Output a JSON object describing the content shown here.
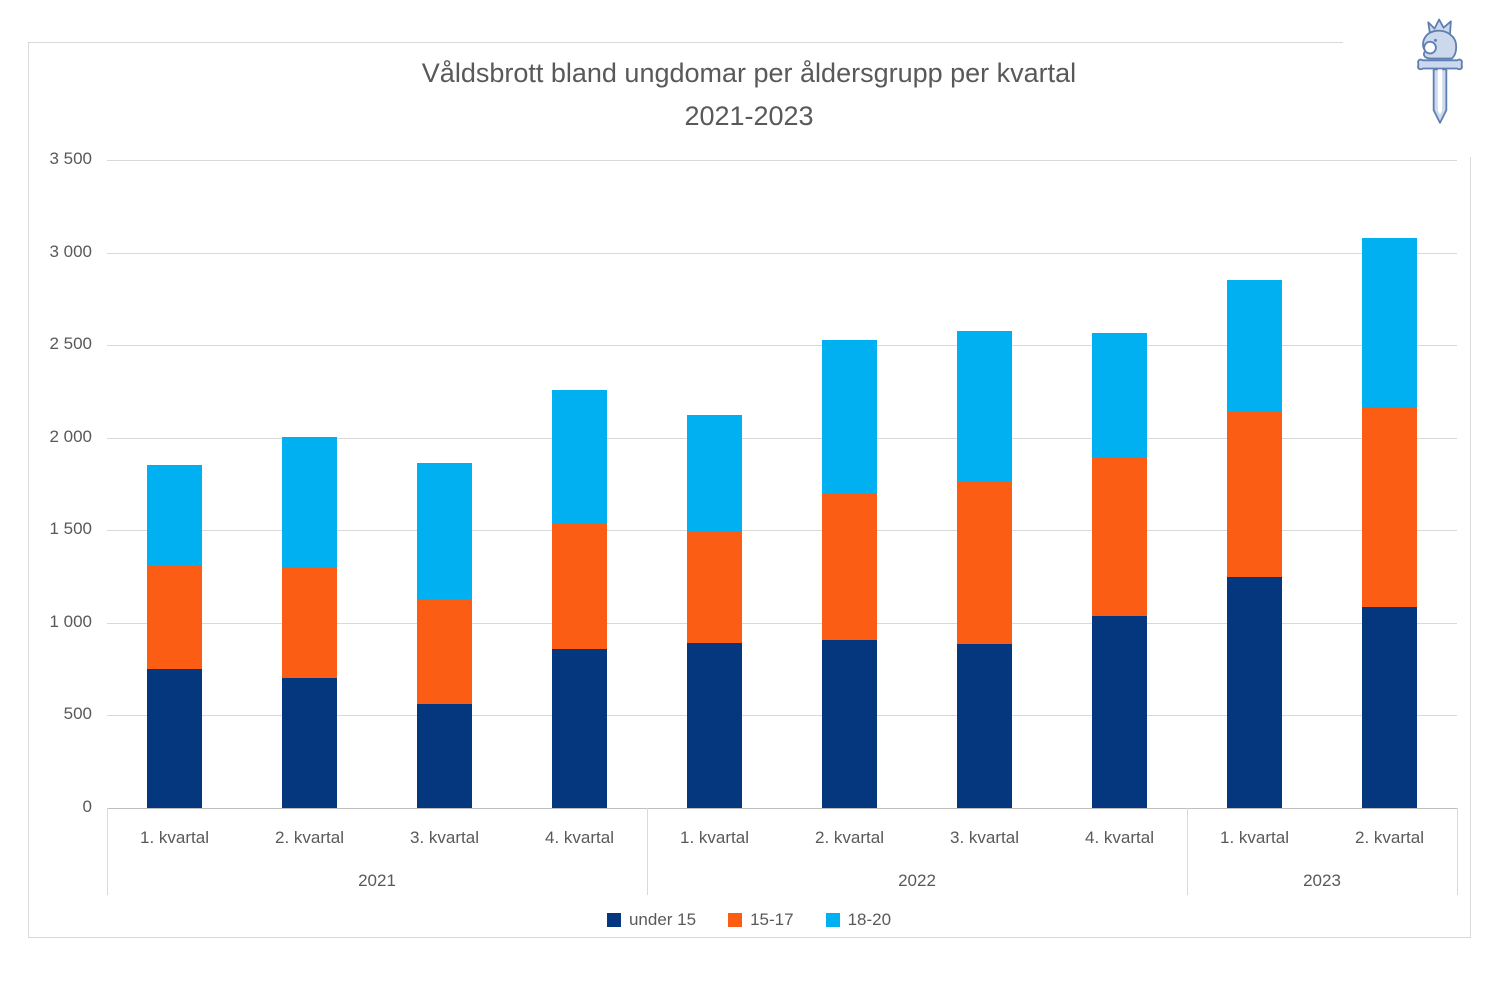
{
  "header": {
    "title_line1": "Våldsbrott bland ungdomar per åldersgrupp per kvartal",
    "title_line2": "2021-2023"
  },
  "logo": {
    "name": "police-sword-emblem",
    "color": "#5f7fb2"
  },
  "chart_data": {
    "type": "bar",
    "stacked": true,
    "title_line1": "Våldsbrott bland ungdomar per åldersgrupp per kvartal",
    "title_line2": "2021-2023",
    "groups": [
      {
        "year": "2021",
        "quarters": [
          "1. kvartal",
          "2. kvartal",
          "3. kvartal",
          "4. kvartal"
        ]
      },
      {
        "year": "2022",
        "quarters": [
          "1. kvartal",
          "2. kvartal",
          "3. kvartal",
          "4. kvartal"
        ]
      },
      {
        "year": "2023",
        "quarters": [
          "1. kvartal",
          "2. kvartal"
        ]
      }
    ],
    "categories": [
      "2021 1. kvartal",
      "2021 2. kvartal",
      "2021 3. kvartal",
      "2021 4. kvartal",
      "2022 1. kvartal",
      "2022 2. kvartal",
      "2022 3. kvartal",
      "2022 4. kvartal",
      "2023 1. kvartal",
      "2023 2. kvartal"
    ],
    "series": [
      {
        "name": "under 15",
        "color": "#04377e",
        "values": [
          750,
          700,
          560,
          860,
          890,
          910,
          885,
          1035,
          1250,
          1085
        ]
      },
      {
        "name": "15-17",
        "color": "#fc5d14",
        "values": [
          560,
          600,
          570,
          680,
          600,
          790,
          875,
          855,
          890,
          1075
        ]
      },
      {
        "name": "18-20",
        "color": "#00b0f0",
        "values": [
          540,
          705,
          735,
          720,
          635,
          830,
          815,
          675,
          710,
          920
        ]
      }
    ],
    "totals": [
      1850,
      2005,
      1865,
      2260,
      2125,
      2530,
      2575,
      2565,
      2850,
      3080
    ],
    "ylim": [
      0,
      3500
    ],
    "ytick_step": 500,
    "ytick_labels": [
      "0",
      "500",
      "1 000",
      "1 500",
      "2 000",
      "2 500",
      "3 000",
      "3 500"
    ],
    "grid": true,
    "legend_position": "bottom",
    "colors": {
      "grid": "#d9d9d9",
      "axis": "#bfbfbf",
      "text": "#595959"
    }
  }
}
